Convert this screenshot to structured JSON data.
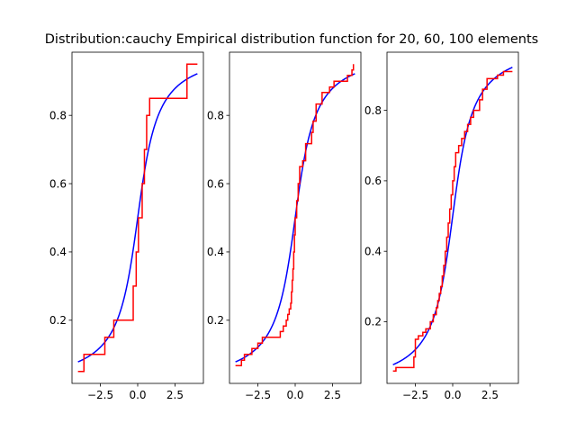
{
  "title": "Distribution:cauchy Empirical distribution function for 20, 60, 100 elements",
  "colors": {
    "cdf": "#0000ff",
    "ecdf": "#ff0000",
    "axes": "#000000",
    "background": "#ffffff"
  },
  "chart_data": [
    {
      "type": "line",
      "xlim": [
        -4.4,
        4.4
      ],
      "ylim": [
        0.015,
        0.985
      ],
      "xticks": [
        -2.5,
        0.0,
        2.5
      ],
      "xtick_labels": [
        "−2.5",
        "0.0",
        "2.5"
      ],
      "yticks": [
        0.2,
        0.4,
        0.6,
        0.8
      ],
      "ytick_labels": [
        "0.2",
        "0.4",
        "0.6",
        "0.8"
      ],
      "series": [
        {
          "kind": "cdf",
          "x": [
            -4.0,
            4.0
          ]
        },
        {
          "kind": "ecdf",
          "steps": [
            [
              -4.0,
              0.05
            ],
            [
              -3.6,
              0.1
            ],
            [
              -2.2,
              0.15
            ],
            [
              -1.6,
              0.2
            ],
            [
              -0.3,
              0.3
            ],
            [
              -0.1,
              0.4
            ],
            [
              0.05,
              0.5
            ],
            [
              0.3,
              0.6
            ],
            [
              0.45,
              0.7
            ],
            [
              0.6,
              0.8
            ],
            [
              0.8,
              0.85
            ],
            [
              3.3,
              0.95
            ],
            [
              4.0,
              0.95
            ]
          ]
        }
      ]
    },
    {
      "type": "line",
      "xlim": [
        -4.4,
        4.4
      ],
      "ylim": [
        0.015,
        0.985
      ],
      "xticks": [
        -2.5,
        0.0,
        2.5
      ],
      "xtick_labels": [
        "−2.5",
        "0.0",
        "2.5"
      ],
      "yticks": [
        0.2,
        0.4,
        0.6,
        0.8
      ],
      "ytick_labels": [
        "0.2",
        "0.4",
        "0.6",
        "0.8"
      ],
      "series": [
        {
          "kind": "cdf",
          "x": [
            -4.0,
            4.0
          ]
        },
        {
          "kind": "ecdf",
          "steps": [
            [
              -4.0,
              0.067
            ],
            [
              -3.6,
              0.083
            ],
            [
              -3.4,
              0.1
            ],
            [
              -2.9,
              0.117
            ],
            [
              -2.5,
              0.133
            ],
            [
              -2.2,
              0.15
            ],
            [
              -1.0,
              0.167
            ],
            [
              -0.8,
              0.183
            ],
            [
              -0.6,
              0.2
            ],
            [
              -0.5,
              0.217
            ],
            [
              -0.4,
              0.233
            ],
            [
              -0.3,
              0.25
            ],
            [
              -0.25,
              0.283
            ],
            [
              -0.2,
              0.317
            ],
            [
              -0.15,
              0.35
            ],
            [
              -0.1,
              0.4
            ],
            [
              -0.05,
              0.45
            ],
            [
              0.0,
              0.5
            ],
            [
              0.1,
              0.55
            ],
            [
              0.2,
              0.6
            ],
            [
              0.3,
              0.65
            ],
            [
              0.5,
              0.667
            ],
            [
              0.7,
              0.717
            ],
            [
              1.1,
              0.75
            ],
            [
              1.2,
              0.783
            ],
            [
              1.4,
              0.833
            ],
            [
              1.8,
              0.867
            ],
            [
              2.3,
              0.883
            ],
            [
              2.6,
              0.9
            ],
            [
              3.5,
              0.917
            ],
            [
              3.8,
              0.933
            ],
            [
              3.9,
              0.95
            ]
          ]
        }
      ]
    },
    {
      "type": "line",
      "xlim": [
        -4.4,
        4.4
      ],
      "ylim": [
        0.025,
        0.965
      ],
      "xticks": [
        -2.5,
        0.0,
        2.5
      ],
      "xtick_labels": [
        "−2.5",
        "0.0",
        "2.5"
      ],
      "yticks": [
        0.2,
        0.4,
        0.6,
        0.8
      ],
      "ytick_labels": [
        "0.2",
        "0.4",
        "0.6",
        "0.8"
      ],
      "series": [
        {
          "kind": "cdf",
          "x": [
            -4.0,
            4.0
          ]
        },
        {
          "kind": "ecdf",
          "steps": [
            [
              -4.0,
              0.06
            ],
            [
              -3.8,
              0.07
            ],
            [
              -2.6,
              0.1
            ],
            [
              -2.5,
              0.15
            ],
            [
              -2.3,
              0.16
            ],
            [
              -2.0,
              0.17
            ],
            [
              -1.8,
              0.18
            ],
            [
              -1.5,
              0.2
            ],
            [
              -1.3,
              0.22
            ],
            [
              -1.1,
              0.24
            ],
            [
              -1.0,
              0.26
            ],
            [
              -0.9,
              0.28
            ],
            [
              -0.8,
              0.3
            ],
            [
              -0.7,
              0.33
            ],
            [
              -0.6,
              0.36
            ],
            [
              -0.5,
              0.4
            ],
            [
              -0.4,
              0.44
            ],
            [
              -0.3,
              0.48
            ],
            [
              -0.2,
              0.52
            ],
            [
              -0.1,
              0.56
            ],
            [
              0.0,
              0.6
            ],
            [
              0.1,
              0.64
            ],
            [
              0.2,
              0.68
            ],
            [
              0.4,
              0.7
            ],
            [
              0.6,
              0.72
            ],
            [
              0.8,
              0.74
            ],
            [
              1.0,
              0.76
            ],
            [
              1.2,
              0.78
            ],
            [
              1.4,
              0.8
            ],
            [
              1.8,
              0.83
            ],
            [
              2.0,
              0.86
            ],
            [
              2.3,
              0.89
            ],
            [
              3.0,
              0.9
            ],
            [
              3.4,
              0.91
            ],
            [
              4.0,
              0.91
            ]
          ]
        }
      ]
    }
  ]
}
